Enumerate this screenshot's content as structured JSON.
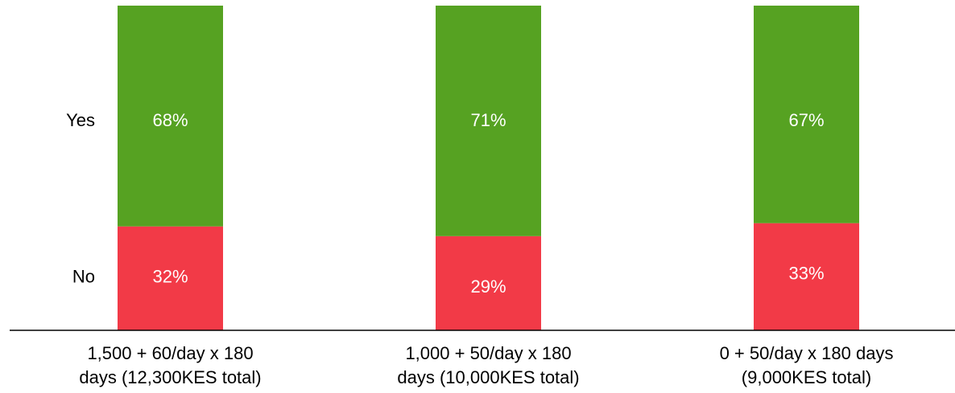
{
  "chart_data": {
    "type": "bar",
    "stacked": true,
    "normalized": true,
    "categories": [
      [
        "1,500 + 60/day x 180",
        "days (12,300KES total)"
      ],
      [
        "1,000 + 50/day x 180",
        "days (10,000KES total)"
      ],
      [
        "0 + 50/day x 180 days",
        "(9,000KES total)"
      ]
    ],
    "series": [
      {
        "name": "No",
        "color": "#f23a47",
        "values": [
          32,
          29,
          33
        ],
        "labels": [
          "32%",
          "29%",
          "33%"
        ]
      },
      {
        "name": "Yes",
        "color": "#56a222",
        "values": [
          68,
          71,
          67
        ],
        "labels": [
          "68%",
          "71%",
          "67%"
        ]
      }
    ],
    "ylim": [
      0,
      100
    ],
    "grid": false,
    "legend": "left"
  }
}
